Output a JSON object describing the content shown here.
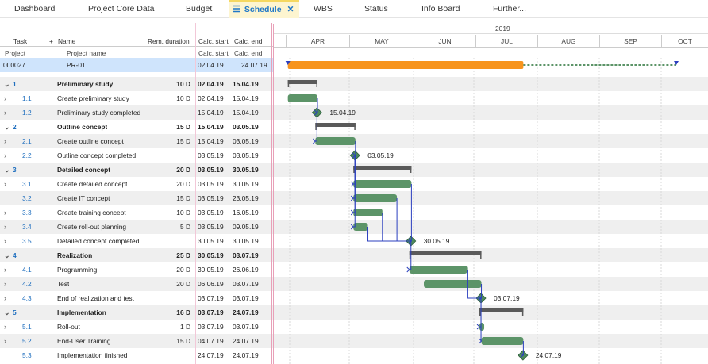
{
  "tabs": [
    {
      "label": "Dashboard",
      "active": false
    },
    {
      "label": "Project Core Data",
      "active": false
    },
    {
      "label": "Budget",
      "active": false
    },
    {
      "label": "Schedule",
      "active": true,
      "icon": "list-icon",
      "close": "✕"
    },
    {
      "label": "WBS",
      "active": false
    },
    {
      "label": "Status",
      "active": false
    },
    {
      "label": "Info Board",
      "active": false
    },
    {
      "label": "Further...",
      "active": false
    }
  ],
  "headers": {
    "task": "Task",
    "add": "+",
    "name": "Name",
    "rem": "Rem. duration",
    "calc_start": "Calc. start",
    "calc_end": "Calc. end",
    "project": "Project",
    "project_name": "Project name",
    "calc_start2": "Calc. start",
    "calc_end2": "Calc. end"
  },
  "project_row": {
    "id": "000027",
    "name": "PR-01",
    "start": "02.04.19",
    "end": "24.07.19"
  },
  "rows": [
    {
      "chev": "⌄",
      "num": "1",
      "name": "Preliminary study",
      "dur": "10 D",
      "start": "02.04.19",
      "end": "15.04.19",
      "bold": true,
      "alt": true
    },
    {
      "chev": "›",
      "num": "1.1",
      "name": "Create preliminary study",
      "dur": "10 D",
      "start": "02.04.19",
      "end": "15.04.19",
      "bold": false,
      "alt": false
    },
    {
      "chev": "›",
      "num": "1.2",
      "name": "Preliminary study completed",
      "dur": "",
      "start": "15.04.19",
      "end": "15.04.19",
      "bold": false,
      "alt": true
    },
    {
      "chev": "⌄",
      "num": "2",
      "name": "Outline concept",
      "dur": "15 D",
      "start": "15.04.19",
      "end": "03.05.19",
      "bold": true,
      "alt": false
    },
    {
      "chev": "›",
      "num": "2.1",
      "name": "Create outline concept",
      "dur": "15 D",
      "start": "15.04.19",
      "end": "03.05.19",
      "bold": false,
      "alt": true
    },
    {
      "chev": "›",
      "num": "2.2",
      "name": "Outline concept completed",
      "dur": "",
      "start": "03.05.19",
      "end": "03.05.19",
      "bold": false,
      "alt": false
    },
    {
      "chev": "⌄",
      "num": "3",
      "name": "Detailed concept",
      "dur": "20 D",
      "start": "03.05.19",
      "end": "30.05.19",
      "bold": true,
      "alt": true
    },
    {
      "chev": "›",
      "num": "3.1",
      "name": "Create detailed concept",
      "dur": "20 D",
      "start": "03.05.19",
      "end": "30.05.19",
      "bold": false,
      "alt": false
    },
    {
      "chev": "",
      "num": "3.2",
      "name": "Create IT concept",
      "dur": "15 D",
      "start": "03.05.19",
      "end": "23.05.19",
      "bold": false,
      "alt": true
    },
    {
      "chev": "›",
      "num": "3.3",
      "name": "Create training concept",
      "dur": "10 D",
      "start": "03.05.19",
      "end": "16.05.19",
      "bold": false,
      "alt": false
    },
    {
      "chev": "›",
      "num": "3.4",
      "name": "Create roll-out planning",
      "dur": "5 D",
      "start": "03.05.19",
      "end": "09.05.19",
      "bold": false,
      "alt": true
    },
    {
      "chev": "›",
      "num": "3.5",
      "name": "Detailed concept completed",
      "dur": "",
      "start": "30.05.19",
      "end": "30.05.19",
      "bold": false,
      "alt": false
    },
    {
      "chev": "⌄",
      "num": "4",
      "name": "Realization",
      "dur": "25 D",
      "start": "30.05.19",
      "end": "03.07.19",
      "bold": true,
      "alt": true
    },
    {
      "chev": "›",
      "num": "4.1",
      "name": "Programming",
      "dur": "20 D",
      "start": "30.05.19",
      "end": "26.06.19",
      "bold": false,
      "alt": false
    },
    {
      "chev": "›",
      "num": "4.2",
      "name": "Test",
      "dur": "20 D",
      "start": "06.06.19",
      "end": "03.07.19",
      "bold": false,
      "alt": true
    },
    {
      "chev": "›",
      "num": "4.3",
      "name": "End of realization and test",
      "dur": "",
      "start": "03.07.19",
      "end": "03.07.19",
      "bold": false,
      "alt": false
    },
    {
      "chev": "⌄",
      "num": "5",
      "name": "Implementation",
      "dur": "16 D",
      "start": "03.07.19",
      "end": "24.07.19",
      "bold": true,
      "alt": true
    },
    {
      "chev": "›",
      "num": "5.1",
      "name": "Roll-out",
      "dur": "1 D",
      "start": "03.07.19",
      "end": "03.07.19",
      "bold": false,
      "alt": false
    },
    {
      "chev": "›",
      "num": "5.2",
      "name": "End-User Training",
      "dur": "15 D",
      "start": "04.07.19",
      "end": "24.07.19",
      "bold": false,
      "alt": true
    },
    {
      "chev": "",
      "num": "5.3",
      "name": "Implementation finished",
      "dur": "",
      "start": "24.07.19",
      "end": "24.07.19",
      "bold": false,
      "alt": false
    }
  ],
  "timeline": {
    "year": "2019",
    "months": [
      "APR",
      "MAY",
      "JUN",
      "JUL",
      "AUG",
      "SEP",
      "OCT"
    ]
  },
  "colors": {
    "accent": "#1f78c8",
    "project_bar": "#f7941d",
    "task_bar": "#5c9468",
    "summary_bar": "#5a5a5a",
    "milestone": "#4e8a5c",
    "link": "#2b3fbf",
    "today": "#e8a0b8"
  },
  "milestone_labels": [
    "15.04.19",
    "03.05.19",
    "30.05.19",
    "03.07.19",
    "24.07.19"
  ]
}
